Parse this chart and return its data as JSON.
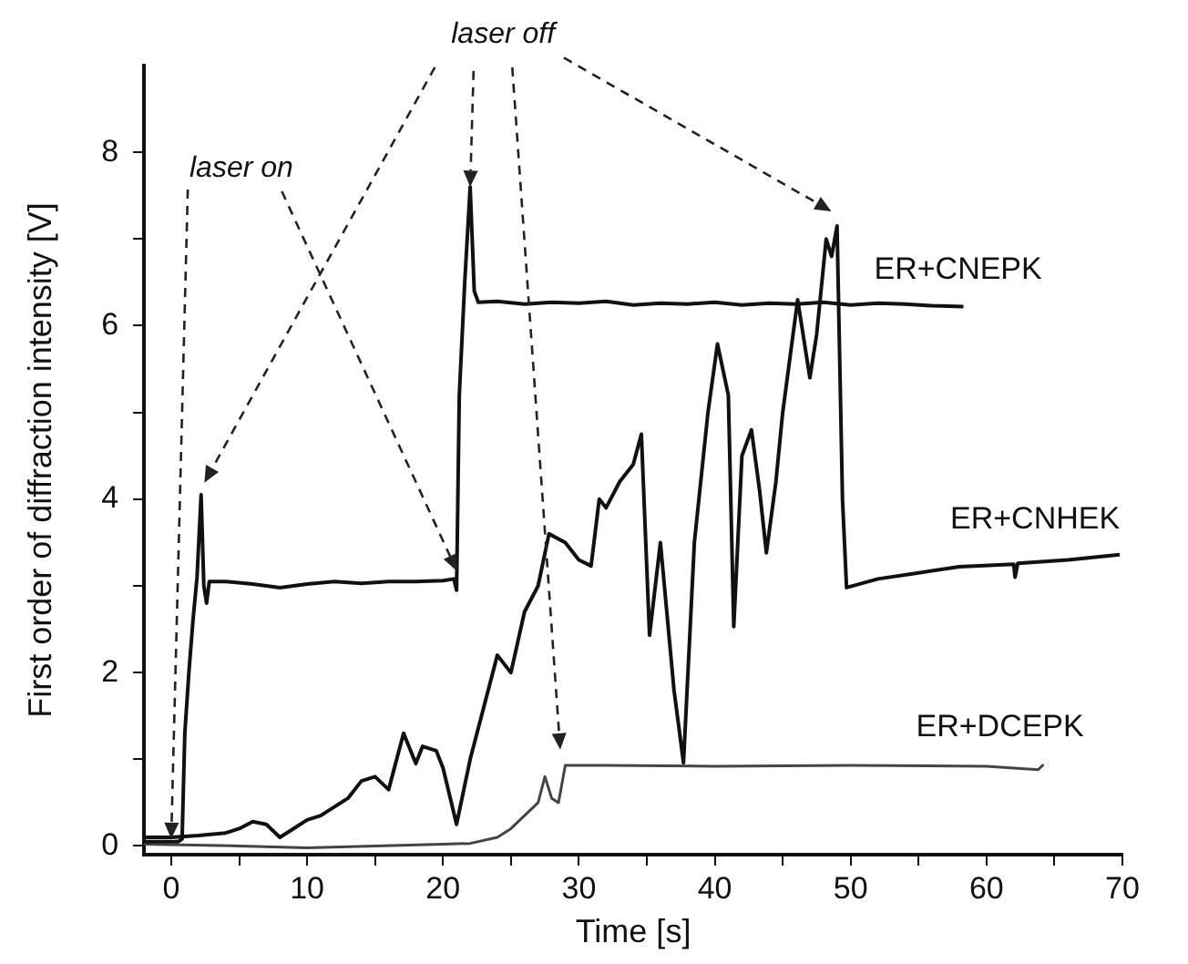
{
  "chart_data": {
    "type": "line",
    "xlabel": "Time [s]",
    "ylabel": "First order of diffraction intensity [V]",
    "xlim": [
      -2,
      70
    ],
    "ylim": [
      -0.1,
      9
    ],
    "xticks": [
      0,
      {
        "value": 5,
        "label": null
      },
      10,
      {
        "value": 15,
        "label": null
      },
      20,
      {
        "value": 25,
        "label": null
      },
      30,
      {
        "value": 35,
        "label": null
      },
      40,
      {
        "value": 45,
        "label": null
      },
      50,
      {
        "value": 55,
        "label": null
      },
      60,
      {
        "value": 65,
        "label": null
      },
      70
    ],
    "yticks": [
      0,
      {
        "value": 1,
        "label": null
      },
      2,
      {
        "value": 3,
        "label": null
      },
      4,
      {
        "value": 5,
        "label": null
      },
      6,
      {
        "value": 7,
        "label": null
      },
      8
    ],
    "grid": false,
    "legend": false,
    "marker": "none",
    "line_style": "solid",
    "annotations": [
      {
        "text": "laser on",
        "x": 0,
        "y": 0.08
      },
      {
        "text": "laser off",
        "x": 22,
        "y": 7.6
      }
    ],
    "series": [
      {
        "name": "ER+CNEPK",
        "color": "#111111",
        "x": [
          -2,
          -1,
          0,
          0.5,
          0.8,
          1.0,
          1.3,
          1.6,
          1.9,
          2.2,
          2.4,
          2.6,
          2.8,
          4,
          6,
          8,
          10,
          12,
          14,
          16,
          18,
          20,
          20.8,
          21.0,
          21.2,
          21.6,
          22.0,
          22.3,
          22.6,
          24,
          26,
          28,
          30,
          32,
          34,
          36,
          38,
          40,
          42,
          44,
          46,
          48,
          50,
          52,
          54,
          56,
          58.3
        ],
        "values": [
          0.05,
          0.05,
          0.05,
          0.05,
          0.08,
          1.3,
          2.0,
          2.6,
          3.1,
          4.05,
          3.0,
          2.8,
          3.05,
          3.05,
          3.02,
          2.98,
          3.02,
          3.05,
          3.03,
          3.05,
          3.05,
          3.06,
          3.08,
          2.95,
          5.2,
          6.5,
          7.6,
          6.4,
          6.27,
          6.28,
          6.25,
          6.27,
          6.26,
          6.28,
          6.24,
          6.26,
          6.25,
          6.27,
          6.24,
          6.26,
          6.25,
          6.27,
          6.24,
          6.26,
          6.25,
          6.23,
          6.22
        ]
      },
      {
        "name": "ER+CNHEK",
        "color": "#111111",
        "x": [
          -2,
          0,
          2,
          4,
          5,
          6,
          7,
          8,
          9,
          10,
          11,
          12,
          13,
          14,
          15,
          16,
          17.1,
          18,
          18.5,
          19.5,
          20,
          21,
          22,
          23,
          24,
          25,
          26,
          27,
          27.8,
          29,
          30,
          30.9,
          31.5,
          32,
          33,
          34,
          34.6,
          35.2,
          36,
          37,
          37.7,
          38.5,
          39.5,
          40.2,
          41,
          41.4,
          42,
          42.7,
          43.3,
          43.8,
          44.5,
          45,
          46.1,
          47,
          47.5,
          48.2,
          48.6,
          49.0,
          49.4,
          49.7,
          52,
          55,
          58,
          62,
          62.1,
          62.3,
          66,
          69.8
        ],
        "values": [
          0.1,
          0.1,
          0.12,
          0.15,
          0.2,
          0.28,
          0.25,
          0.1,
          0.2,
          0.3,
          0.35,
          0.45,
          0.55,
          0.75,
          0.8,
          0.65,
          1.3,
          0.95,
          1.15,
          1.1,
          0.9,
          0.25,
          1.0,
          1.6,
          2.2,
          2.0,
          2.7,
          3.0,
          3.6,
          3.5,
          3.3,
          3.23,
          4.0,
          3.9,
          4.2,
          4.4,
          4.75,
          2.43,
          3.5,
          1.8,
          0.96,
          3.5,
          5.0,
          5.79,
          5.2,
          2.53,
          4.5,
          4.8,
          4.1,
          3.38,
          4.2,
          5.0,
          6.3,
          5.4,
          5.9,
          7.0,
          6.8,
          7.15,
          4.0,
          2.98,
          3.08,
          3.15,
          3.22,
          3.25,
          3.1,
          3.26,
          3.3,
          3.36
        ]
      },
      {
        "name": "ER+DCEPK",
        "color": "#444444",
        "x": [
          -2,
          5,
          10,
          15,
          20,
          22,
          24,
          25,
          26,
          27,
          27.5,
          28,
          28.5,
          29,
          32,
          40,
          50,
          60,
          63.8,
          64.2
        ],
        "values": [
          0.02,
          0.0,
          -0.02,
          0.0,
          0.02,
          0.03,
          0.1,
          0.2,
          0.35,
          0.5,
          0.8,
          0.55,
          0.5,
          0.93,
          0.93,
          0.92,
          0.93,
          0.92,
          0.88,
          0.94
        ]
      }
    ]
  }
}
